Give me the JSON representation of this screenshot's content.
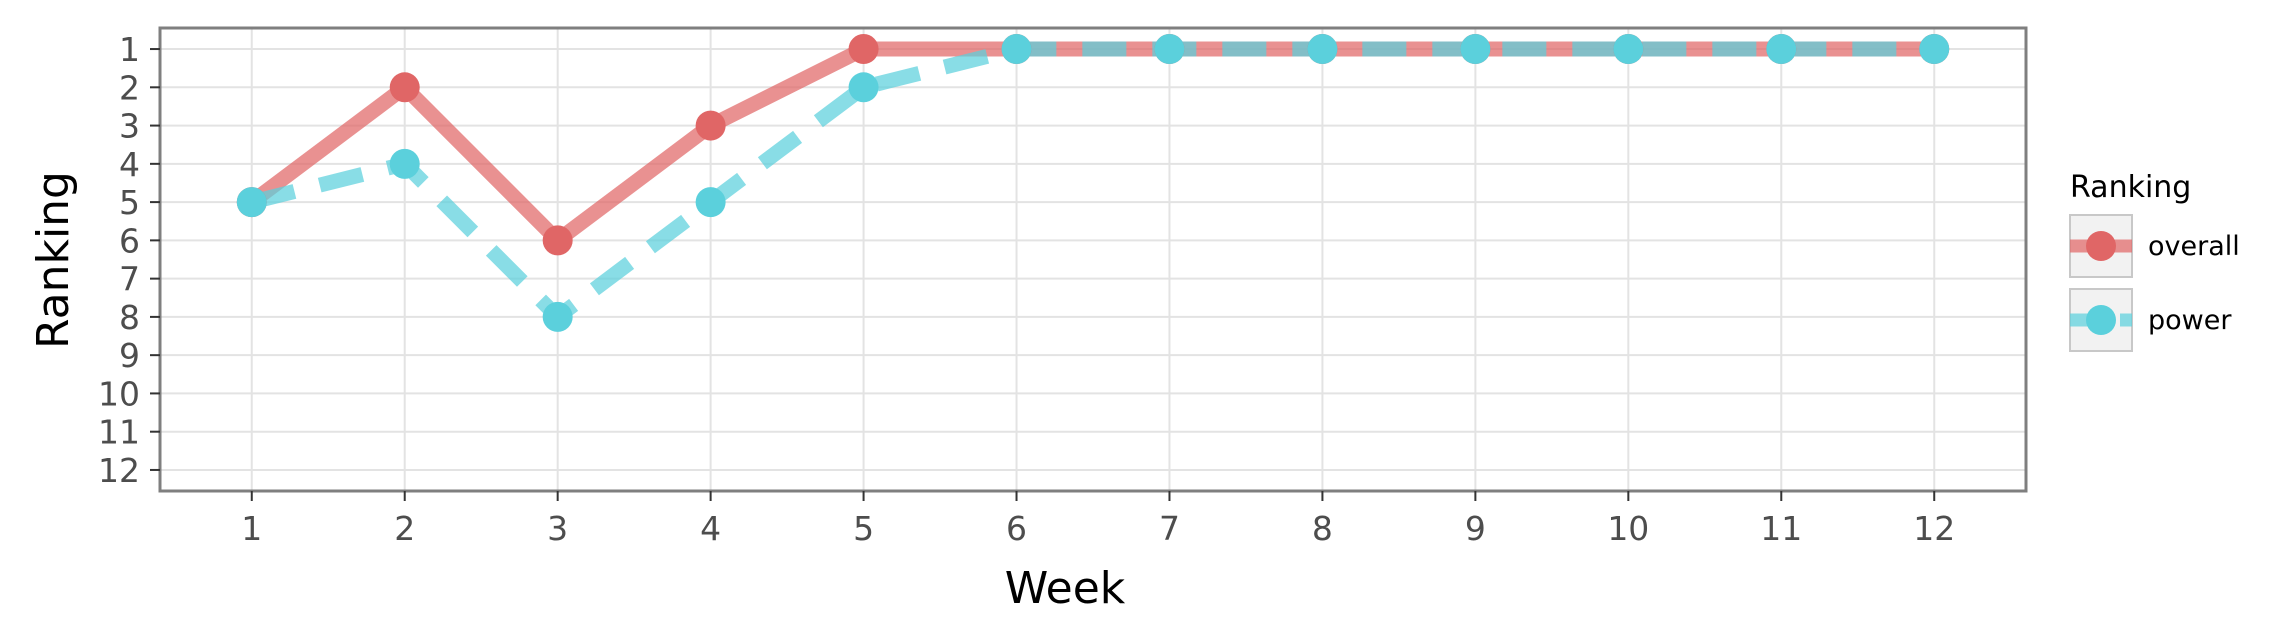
{
  "chart_data": {
    "type": "line",
    "xlabel": "Week",
    "ylabel": "Ranking",
    "x": [
      1,
      2,
      3,
      4,
      5,
      6,
      7,
      8,
      9,
      10,
      11,
      12
    ],
    "xlim": [
      0.4,
      12.6
    ],
    "ylim": [
      12.55,
      0.45
    ],
    "y_reversed": true,
    "yticks": [
      1,
      2,
      3,
      4,
      5,
      6,
      7,
      8,
      9,
      10,
      11,
      12
    ],
    "grid": true,
    "legend": {
      "title": "Ranking",
      "placement": "right"
    },
    "series": [
      {
        "name": "overall",
        "values": [
          5,
          2,
          6,
          3,
          1,
          1,
          1,
          1,
          1,
          1,
          1,
          1
        ],
        "color": "#e06666",
        "line_style": "solid"
      },
      {
        "name": "power",
        "values": [
          5,
          4,
          8,
          5,
          2,
          1,
          1,
          1,
          1,
          1,
          1,
          1
        ],
        "color": "#5bd0dc",
        "line_style": "dashed"
      }
    ]
  }
}
